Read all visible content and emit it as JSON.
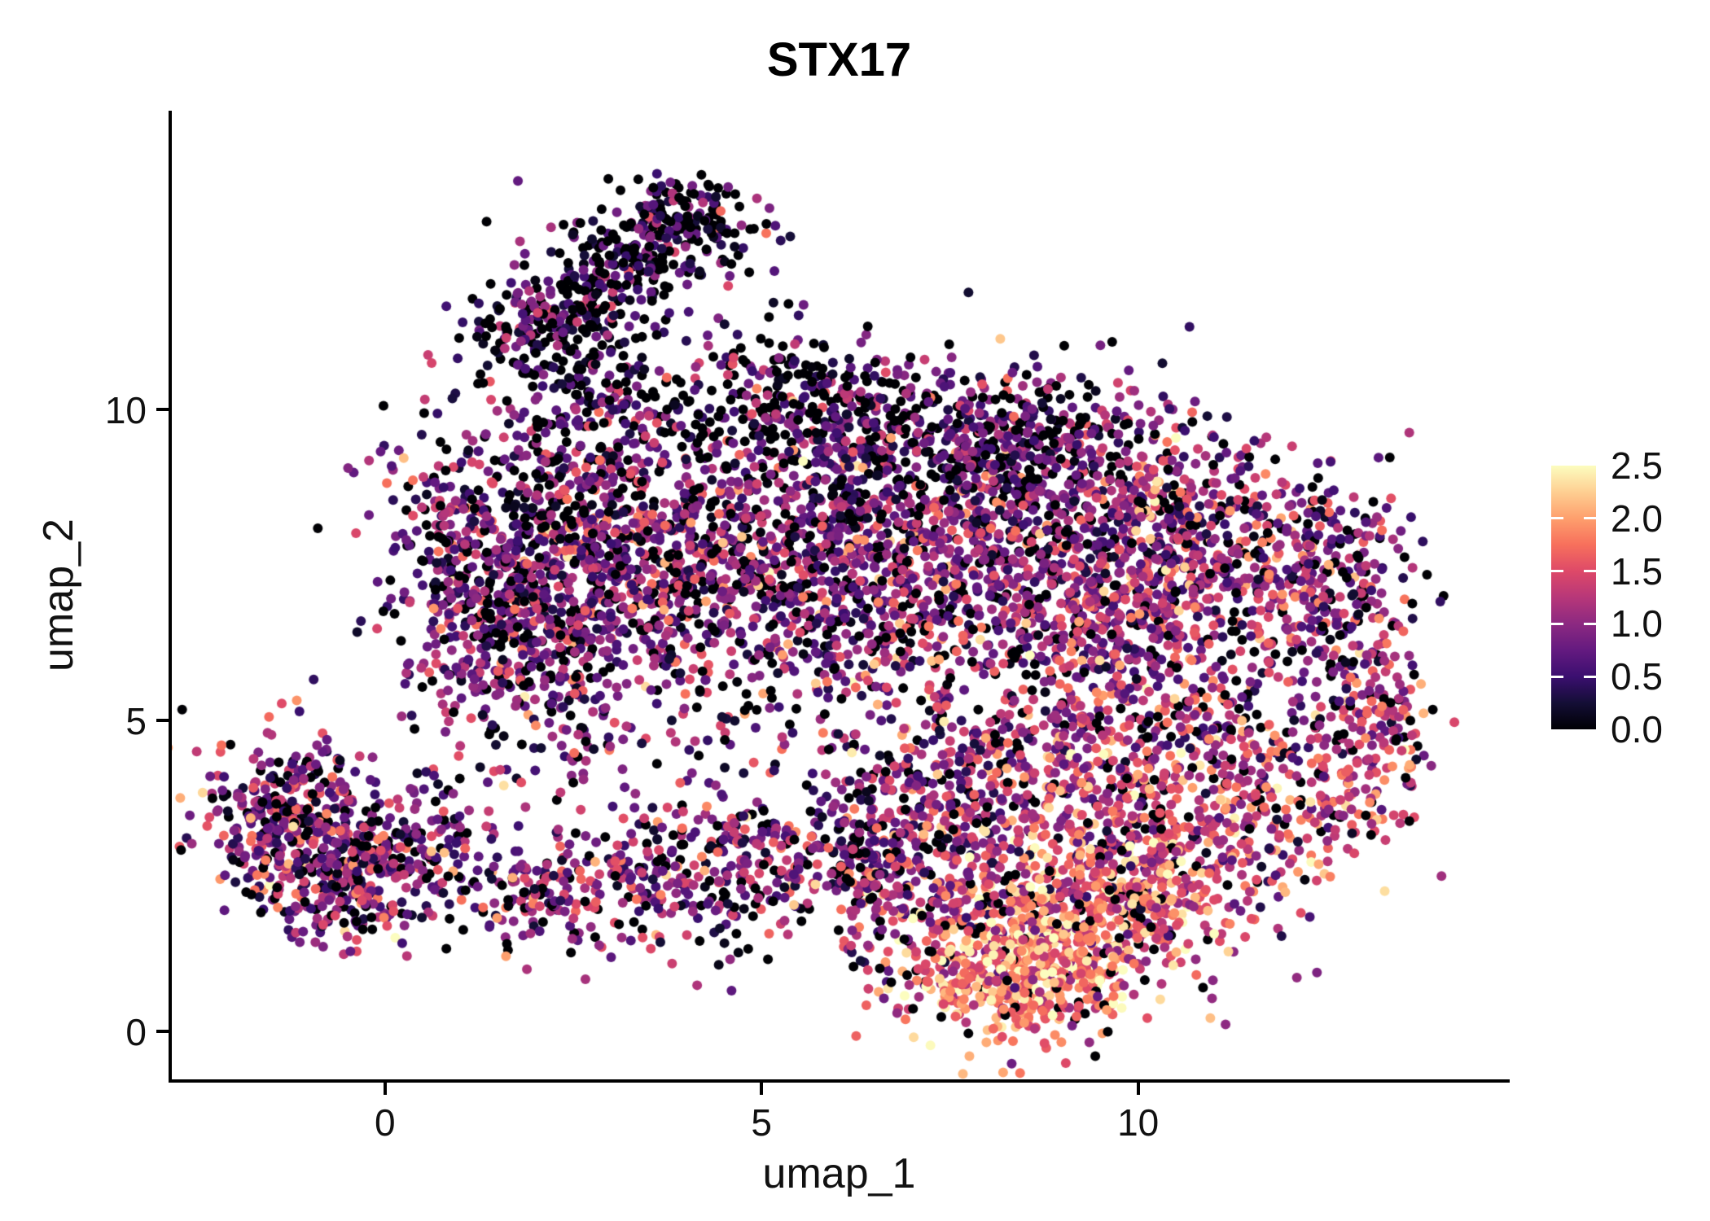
{
  "chart_data": {
    "type": "scatter",
    "title": "STX17",
    "xlabel": "umap_1",
    "ylabel": "umap_2",
    "x_ticks": [
      0,
      5,
      10
    ],
    "y_ticks": [
      0,
      5,
      10
    ],
    "xlim": [
      -2.83,
      14.89
    ],
    "ylim": [
      -0.77,
      14.8
    ],
    "grid": false,
    "legend_position": "right",
    "point_radius": 6,
    "seed": 1337,
    "colorbar": {
      "min": 0.0,
      "max": 2.5,
      "ticks": [
        0.0,
        0.5,
        1.0,
        1.5,
        2.0,
        2.5
      ],
      "inner_ticks": [
        0.5,
        1.0,
        1.5,
        2.0
      ],
      "colormap": "magma",
      "anchors": [
        {
          "t": 0.0,
          "c": "#000004"
        },
        {
          "t": 0.1,
          "c": "#140e36"
        },
        {
          "t": 0.2,
          "c": "#3b0f70"
        },
        {
          "t": 0.3,
          "c": "#641a80"
        },
        {
          "t": 0.4,
          "c": "#8c2981"
        },
        {
          "t": 0.5,
          "c": "#b73779"
        },
        {
          "t": 0.6,
          "c": "#de4968"
        },
        {
          "t": 0.7,
          "c": "#f7705c"
        },
        {
          "t": 0.8,
          "c": "#fe9f6d"
        },
        {
          "t": 0.9,
          "c": "#fecf92"
        },
        {
          "t": 1.0,
          "c": "#fcfdbf"
        }
      ]
    },
    "clusters": [
      {
        "id": "arm-tip",
        "cx": 4.1,
        "cy": 13.0,
        "sx": 0.55,
        "sy": 0.35,
        "n": 150,
        "mean": 0.55,
        "sd": 0.5,
        "zero": 0.3
      },
      {
        "id": "arm-2",
        "cx": 3.3,
        "cy": 12.4,
        "sx": 0.5,
        "sy": 0.4,
        "n": 130,
        "mean": 0.55,
        "sd": 0.5,
        "zero": 0.28
      },
      {
        "id": "arm-3",
        "cx": 2.6,
        "cy": 11.7,
        "sx": 0.5,
        "sy": 0.45,
        "n": 140,
        "mean": 0.6,
        "sd": 0.5,
        "zero": 0.28
      },
      {
        "id": "arm-4",
        "cx": 1.9,
        "cy": 11.2,
        "sx": 0.45,
        "sy": 0.4,
        "n": 110,
        "mean": 0.6,
        "sd": 0.5,
        "zero": 0.28
      },
      {
        "id": "arm-neck",
        "cx": 3.0,
        "cy": 10.3,
        "sx": 0.5,
        "sy": 0.5,
        "n": 100,
        "mean": 0.6,
        "sd": 0.5,
        "zero": 0.3
      },
      {
        "id": "top-scatter",
        "cx": 5.2,
        "cy": 10.6,
        "sx": 0.8,
        "sy": 0.5,
        "n": 90,
        "mean": 0.5,
        "sd": 0.5,
        "zero": 0.35
      },
      {
        "id": "main-left-1",
        "cx": 2.2,
        "cy": 8.3,
        "sx": 1.0,
        "sy": 0.95,
        "n": 480,
        "mean": 0.85,
        "sd": 0.52,
        "zero": 0.18
      },
      {
        "id": "main-left-2",
        "cx": 2.0,
        "cy": 6.2,
        "sx": 0.85,
        "sy": 0.85,
        "n": 380,
        "mean": 0.85,
        "sd": 0.52,
        "zero": 0.18
      },
      {
        "id": "main-left-3",
        "cx": 3.6,
        "cy": 7.3,
        "sx": 1.0,
        "sy": 1.0,
        "n": 420,
        "mean": 0.85,
        "sd": 0.55,
        "zero": 0.18
      },
      {
        "id": "main-left-edge",
        "cx": 1.2,
        "cy": 7.3,
        "sx": 0.55,
        "sy": 0.9,
        "n": 170,
        "mean": 0.8,
        "sd": 0.5,
        "zero": 0.2
      },
      {
        "id": "main-center-1",
        "cx": 5.2,
        "cy": 7.8,
        "sx": 1.1,
        "sy": 1.1,
        "n": 440,
        "mean": 0.9,
        "sd": 0.55,
        "zero": 0.18
      },
      {
        "id": "main-center-2",
        "cx": 6.8,
        "cy": 8.7,
        "sx": 1.1,
        "sy": 0.9,
        "n": 400,
        "mean": 0.85,
        "sd": 0.55,
        "zero": 0.2
      },
      {
        "id": "main-center-3",
        "cx": 6.4,
        "cy": 6.6,
        "sx": 1.0,
        "sy": 0.95,
        "n": 380,
        "mean": 0.95,
        "sd": 0.55,
        "zero": 0.16
      },
      {
        "id": "main-top",
        "cx": 6.0,
        "cy": 9.8,
        "sx": 1.3,
        "sy": 0.55,
        "n": 240,
        "mean": 0.55,
        "sd": 0.5,
        "zero": 0.3
      },
      {
        "id": "main-top-right",
        "cx": 8.3,
        "cy": 9.4,
        "sx": 1.0,
        "sy": 0.65,
        "n": 280,
        "mean": 0.75,
        "sd": 0.55,
        "zero": 0.25
      },
      {
        "id": "main-right-1",
        "cx": 8.7,
        "cy": 7.6,
        "sx": 1.0,
        "sy": 1.0,
        "n": 400,
        "mean": 1.0,
        "sd": 0.55,
        "zero": 0.15
      },
      {
        "id": "main-right-2",
        "cx": 10.1,
        "cy": 8.4,
        "sx": 1.0,
        "sy": 0.75,
        "n": 340,
        "mean": 1.0,
        "sd": 0.55,
        "zero": 0.15
      },
      {
        "id": "main-right-3",
        "cx": 11.4,
        "cy": 7.7,
        "sx": 0.85,
        "sy": 0.75,
        "n": 280,
        "mean": 1.05,
        "sd": 0.6,
        "zero": 0.15
      },
      {
        "id": "main-right-4",
        "cx": 9.7,
        "cy": 6.3,
        "sx": 0.85,
        "sy": 0.8,
        "n": 300,
        "mean": 1.1,
        "sd": 0.55,
        "zero": 0.14
      },
      {
        "id": "right-edge-top",
        "cx": 12.6,
        "cy": 6.9,
        "sx": 0.55,
        "sy": 0.85,
        "n": 200,
        "mean": 1.0,
        "sd": 0.6,
        "zero": 0.15
      },
      {
        "id": "right-edge-mid",
        "cx": 13.1,
        "cy": 5.2,
        "sx": 0.45,
        "sy": 0.8,
        "n": 140,
        "mean": 1.2,
        "sd": 0.6,
        "zero": 0.13
      },
      {
        "id": "right-edge-bottom",
        "cx": 12.4,
        "cy": 3.7,
        "sx": 0.65,
        "sy": 0.75,
        "n": 170,
        "mean": 1.3,
        "sd": 0.6,
        "zero": 0.12
      },
      {
        "id": "botleft-1",
        "cx": -1.3,
        "cy": 3.3,
        "sx": 0.62,
        "sy": 0.72,
        "n": 360,
        "mean": 0.95,
        "sd": 0.55,
        "zero": 0.15
      },
      {
        "id": "botleft-2",
        "cx": -0.4,
        "cy": 2.5,
        "sx": 0.55,
        "sy": 0.55,
        "n": 240,
        "mean": 0.95,
        "sd": 0.55,
        "zero": 0.15
      },
      {
        "id": "botleft-3",
        "cx": 0.6,
        "cy": 3.0,
        "sx": 0.55,
        "sy": 0.5,
        "n": 130,
        "mean": 0.9,
        "sd": 0.55,
        "zero": 0.16
      },
      {
        "id": "bot-bridge",
        "cx": 1.7,
        "cy": 2.1,
        "sx": 0.5,
        "sy": 0.4,
        "n": 60,
        "mean": 0.9,
        "sd": 0.55,
        "zero": 0.16
      },
      {
        "id": "bot-band-1",
        "cx": 2.7,
        "cy": 2.3,
        "sx": 0.75,
        "sy": 0.55,
        "n": 150,
        "mean": 0.95,
        "sd": 0.55,
        "zero": 0.15
      },
      {
        "id": "bot-band-2",
        "cx": 4.4,
        "cy": 2.6,
        "sx": 0.85,
        "sy": 0.65,
        "n": 190,
        "mean": 0.95,
        "sd": 0.55,
        "zero": 0.15
      },
      {
        "id": "bot-band-3",
        "cx": 6.0,
        "cy": 2.9,
        "sx": 0.85,
        "sy": 0.65,
        "n": 210,
        "mean": 0.95,
        "sd": 0.55,
        "zero": 0.15
      },
      {
        "id": "bot-band-4",
        "cx": 7.2,
        "cy": 2.3,
        "sx": 0.75,
        "sy": 0.75,
        "n": 240,
        "mean": 1.1,
        "sd": 0.55,
        "zero": 0.13
      },
      {
        "id": "mid-sparse",
        "cx": 3.5,
        "cy": 4.6,
        "sx": 1.2,
        "sy": 0.5,
        "n": 50,
        "mean": 0.9,
        "sd": 0.55,
        "zero": 0.2
      },
      {
        "id": "hotspot-core",
        "cx": 8.7,
        "cy": 1.2,
        "sx": 0.85,
        "sy": 0.6,
        "n": 400,
        "mean": 1.9,
        "sd": 0.45,
        "zero": 0.07
      },
      {
        "id": "hotspot-2",
        "cx": 9.6,
        "cy": 2.1,
        "sx": 0.8,
        "sy": 0.75,
        "n": 360,
        "mean": 1.6,
        "sd": 0.5,
        "zero": 0.09
      },
      {
        "id": "hotspot-3",
        "cx": 8.0,
        "cy": 0.8,
        "sx": 0.7,
        "sy": 0.45,
        "n": 200,
        "mean": 1.7,
        "sd": 0.5,
        "zero": 0.08
      },
      {
        "id": "hotspot-ne",
        "cx": 10.4,
        "cy": 3.1,
        "sx": 0.8,
        "sy": 0.75,
        "n": 280,
        "mean": 1.4,
        "sd": 0.55,
        "zero": 0.1
      },
      {
        "id": "right-mid",
        "cx": 11.0,
        "cy": 4.6,
        "sx": 0.7,
        "sy": 0.8,
        "n": 200,
        "mean": 1.2,
        "sd": 0.6,
        "zero": 0.12
      },
      {
        "id": "center-low",
        "cx": 8.8,
        "cy": 4.6,
        "sx": 1.0,
        "sy": 0.7,
        "n": 260,
        "mean": 1.2,
        "sd": 0.55,
        "zero": 0.12
      },
      {
        "id": "center-low-2",
        "cx": 7.6,
        "cy": 3.7,
        "sx": 0.75,
        "sy": 0.6,
        "n": 190,
        "mean": 1.1,
        "sd": 0.55,
        "zero": 0.13
      }
    ]
  }
}
